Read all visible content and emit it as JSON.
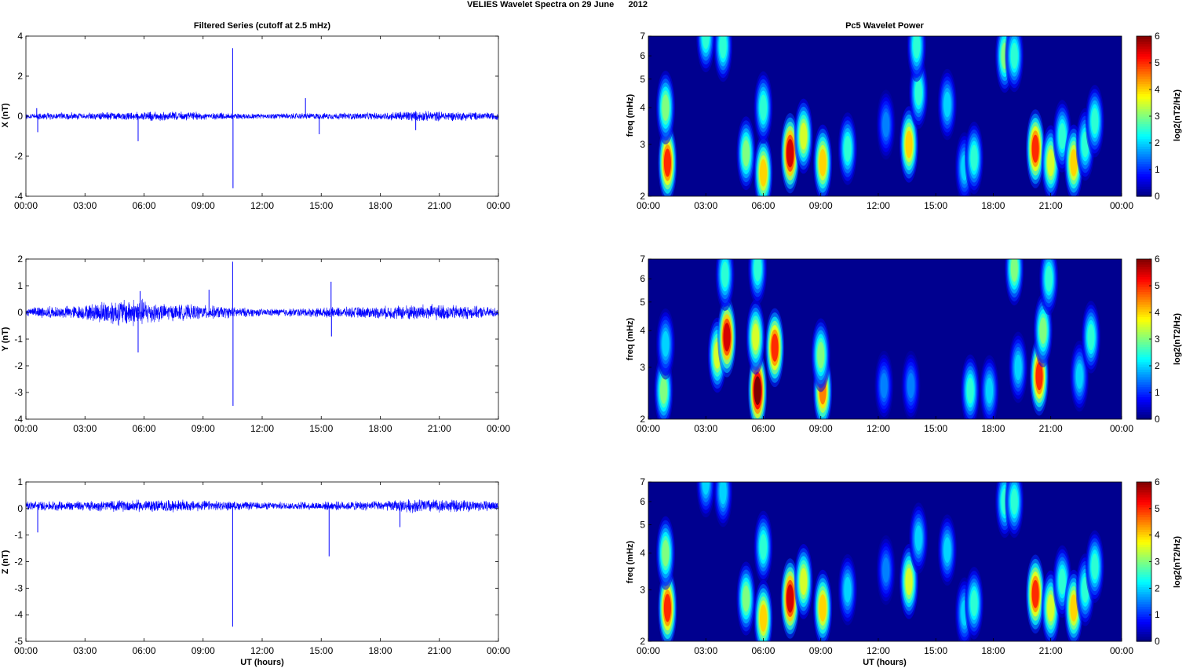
{
  "figure": {
    "title": "VELIES Wavelet Spectra on 29 June      2012",
    "left_title": "Filtered Series (cutoff at 2.5 mHz)",
    "right_title": "Pc5 Wavelet Power"
  },
  "colors": {
    "trace": "#0000ff",
    "background": "#00008f",
    "colormap": "jet"
  },
  "chart_data": [
    {
      "type": "line",
      "name": "x-series",
      "title": "Filtered Series (cutoff at 2.5 mHz)",
      "xlabel": "",
      "ylabel": "X (nT)",
      "xlim": [
        0,
        24
      ],
      "ylim": [
        -4,
        4
      ],
      "xticks": [
        "00:00",
        "03:00",
        "06:00",
        "09:00",
        "12:00",
        "15:00",
        "18:00",
        "21:00",
        "00:00"
      ],
      "yticks": [
        -4,
        -2,
        0,
        2,
        4
      ],
      "baseline": 0,
      "noise_envelope": [
        [
          0,
          0.2
        ],
        [
          3,
          0.2
        ],
        [
          5.5,
          0.25
        ],
        [
          7.5,
          0.25
        ],
        [
          12,
          0.15
        ],
        [
          18,
          0.2
        ],
        [
          19.5,
          0.3
        ],
        [
          22,
          0.25
        ],
        [
          24,
          0.2
        ]
      ],
      "spikes": [
        {
          "x": 0.55,
          "y": 0.4
        },
        {
          "x": 0.6,
          "y": -0.8
        },
        {
          "x": 5.7,
          "y": -1.25
        },
        {
          "x": 10.5,
          "y": 3.4
        },
        {
          "x": 10.52,
          "y": -3.6
        },
        {
          "x": 14.2,
          "y": 0.9
        },
        {
          "x": 14.9,
          "y": -0.9
        },
        {
          "x": 19.8,
          "y": -0.7
        }
      ]
    },
    {
      "type": "line",
      "name": "y-series",
      "title": "",
      "xlabel": "",
      "ylabel": "Y (nT)",
      "xlim": [
        0,
        24
      ],
      "ylim": [
        -4,
        2
      ],
      "xticks": [
        "00:00",
        "03:00",
        "06:00",
        "09:00",
        "12:00",
        "15:00",
        "18:00",
        "21:00",
        "00:00"
      ],
      "yticks": [
        -4,
        -3,
        -2,
        -1,
        0,
        1,
        2
      ],
      "baseline": 0,
      "noise_envelope": [
        [
          0,
          0.2
        ],
        [
          3,
          0.3
        ],
        [
          4,
          0.5
        ],
        [
          5.7,
          0.6
        ],
        [
          7,
          0.35
        ],
        [
          9,
          0.3
        ],
        [
          12,
          0.15
        ],
        [
          18,
          0.25
        ],
        [
          20,
          0.35
        ],
        [
          22,
          0.3
        ],
        [
          24,
          0.2
        ]
      ],
      "spikes": [
        {
          "x": 5.7,
          "y": -1.5
        },
        {
          "x": 5.8,
          "y": 0.8
        },
        {
          "x": 9.3,
          "y": 0.85
        },
        {
          "x": 10.5,
          "y": 1.9
        },
        {
          "x": 10.52,
          "y": -3.5
        },
        {
          "x": 15.5,
          "y": 1.15
        },
        {
          "x": 15.52,
          "y": -0.9
        }
      ]
    },
    {
      "type": "line",
      "name": "z-series",
      "title": "",
      "xlabel": "UT (hours)",
      "ylabel": "Z (nT)",
      "xlim": [
        0,
        24
      ],
      "ylim": [
        -5,
        1
      ],
      "xticks": [
        "00:00",
        "03:00",
        "06:00",
        "09:00",
        "12:00",
        "15:00",
        "18:00",
        "21:00",
        "00:00"
      ],
      "yticks": [
        -5,
        -4,
        -3,
        -2,
        -1,
        0,
        1
      ],
      "baseline": 0.1,
      "noise_envelope": [
        [
          0,
          0.2
        ],
        [
          3,
          0.2
        ],
        [
          5.5,
          0.25
        ],
        [
          7.5,
          0.25
        ],
        [
          12,
          0.15
        ],
        [
          18,
          0.2
        ],
        [
          20,
          0.3
        ],
        [
          22,
          0.25
        ],
        [
          24,
          0.2
        ]
      ],
      "spikes": [
        {
          "x": 0.6,
          "y": -0.9
        },
        {
          "x": 10.5,
          "y": -4.45
        },
        {
          "x": 15.4,
          "y": -1.8
        },
        {
          "x": 19.0,
          "y": -0.7
        }
      ]
    },
    {
      "type": "heatmap",
      "name": "x-wavelet",
      "title": "Pc5 Wavelet Power",
      "xlabel": "",
      "ylabel": "freq (mHz)",
      "colorbar_label": "log2(nT2/Hz)",
      "xlim": [
        0,
        24.7
      ],
      "ylim": [
        2,
        7
      ],
      "yscale": "log",
      "xticks": [
        {
          "v": 0,
          "t": "00:00"
        },
        {
          "v": 3,
          "t": "03:00"
        },
        {
          "v": 6,
          "t": "06:00"
        },
        {
          "v": 9,
          "t": "09:00"
        },
        {
          "v": 12,
          "t": "12:00"
        },
        {
          "v": 15,
          "t": "15:00"
        },
        {
          "v": 18,
          "t": "18:00"
        },
        {
          "v": 21,
          "t": "21:00"
        },
        {
          "v": 24.7,
          "t": "00:00"
        }
      ],
      "yticks": [
        2,
        3,
        4,
        5,
        6,
        7
      ],
      "clim": [
        0,
        6
      ],
      "cticks": [
        0,
        1,
        2,
        3,
        4,
        5,
        6
      ],
      "blobs": [
        {
          "t": 1.0,
          "f": 2.6,
          "v": 5.0
        },
        {
          "t": 0.9,
          "f": 4.0,
          "v": 3.0
        },
        {
          "t": 3.0,
          "f": 7.0,
          "v": 2.5
        },
        {
          "t": 3.9,
          "f": 6.5,
          "v": 2.5
        },
        {
          "t": 5.1,
          "f": 2.8,
          "v": 3.0
        },
        {
          "t": 6.0,
          "f": 2.4,
          "v": 4.0
        },
        {
          "t": 6.0,
          "f": 4.0,
          "v": 2.5
        },
        {
          "t": 7.4,
          "f": 2.8,
          "v": 5.5
        },
        {
          "t": 8.1,
          "f": 3.2,
          "v": 3.5
        },
        {
          "t": 9.1,
          "f": 2.6,
          "v": 4.0
        },
        {
          "t": 10.4,
          "f": 2.9,
          "v": 2.5
        },
        {
          "t": 12.4,
          "f": 3.5,
          "v": 1.5
        },
        {
          "t": 13.6,
          "f": 3.0,
          "v": 4.0
        },
        {
          "t": 14.1,
          "f": 4.5,
          "v": 2.5
        },
        {
          "t": 14.0,
          "f": 6.5,
          "v": 2.5
        },
        {
          "t": 15.6,
          "f": 4.1,
          "v": 2.0
        },
        {
          "t": 16.5,
          "f": 2.5,
          "v": 2.0
        },
        {
          "t": 17.0,
          "f": 2.7,
          "v": 2.5
        },
        {
          "t": 18.6,
          "f": 6.0,
          "v": 3.0
        },
        {
          "t": 19.1,
          "f": 6.0,
          "v": 2.5
        },
        {
          "t": 20.2,
          "f": 2.9,
          "v": 5.0
        },
        {
          "t": 21.0,
          "f": 2.6,
          "v": 3.5
        },
        {
          "t": 21.6,
          "f": 3.2,
          "v": 2.5
        },
        {
          "t": 22.2,
          "f": 2.6,
          "v": 4.0
        },
        {
          "t": 22.8,
          "f": 3.0,
          "v": 2.5
        },
        {
          "t": 23.3,
          "f": 3.6,
          "v": 2.5
        }
      ]
    },
    {
      "type": "heatmap",
      "name": "y-wavelet",
      "title": "",
      "xlabel": "",
      "ylabel": "freq (mHz)",
      "colorbar_label": "log2(nT2/Hz)",
      "xlim": [
        0,
        24.7
      ],
      "ylim": [
        2,
        7
      ],
      "yscale": "log",
      "xticks": [
        {
          "v": 0,
          "t": "00:00"
        },
        {
          "v": 3,
          "t": "03:00"
        },
        {
          "v": 6,
          "t": "06:00"
        },
        {
          "v": 9,
          "t": "09:00"
        },
        {
          "v": 12,
          "t": "12:00"
        },
        {
          "v": 15,
          "t": "15:00"
        },
        {
          "v": 18,
          "t": "18:00"
        },
        {
          "v": 21,
          "t": "21:00"
        },
        {
          "v": 24.7,
          "t": "00:00"
        }
      ],
      "yticks": [
        2,
        3,
        4,
        5,
        6,
        7
      ],
      "clim": [
        0,
        6
      ],
      "cticks": [
        0,
        1,
        2,
        3,
        4,
        5,
        6
      ],
      "blobs": [
        {
          "t": 0.8,
          "f": 2.5,
          "v": 3.0
        },
        {
          "t": 0.9,
          "f": 3.6,
          "v": 2.0
        },
        {
          "t": 3.6,
          "f": 3.3,
          "v": 3.5
        },
        {
          "t": 4.1,
          "f": 3.8,
          "v": 5.5
        },
        {
          "t": 4.0,
          "f": 6.2,
          "v": 2.5
        },
        {
          "t": 5.7,
          "f": 2.5,
          "v": 6.0
        },
        {
          "t": 5.6,
          "f": 3.8,
          "v": 3.5
        },
        {
          "t": 6.6,
          "f": 3.5,
          "v": 5.0
        },
        {
          "t": 5.7,
          "f": 6.5,
          "v": 2.5
        },
        {
          "t": 9.1,
          "f": 2.5,
          "v": 4.5
        },
        {
          "t": 9.0,
          "f": 3.3,
          "v": 3.0
        },
        {
          "t": 12.3,
          "f": 2.6,
          "v": 1.5
        },
        {
          "t": 13.7,
          "f": 2.6,
          "v": 1.5
        },
        {
          "t": 16.8,
          "f": 2.5,
          "v": 2.5
        },
        {
          "t": 17.8,
          "f": 2.5,
          "v": 2.0
        },
        {
          "t": 19.1,
          "f": 6.5,
          "v": 3.0
        },
        {
          "t": 19.3,
          "f": 3.0,
          "v": 2.0
        },
        {
          "t": 20.4,
          "f": 2.8,
          "v": 5.0
        },
        {
          "t": 20.6,
          "f": 4.0,
          "v": 3.0
        },
        {
          "t": 20.9,
          "f": 6.0,
          "v": 2.5
        },
        {
          "t": 22.5,
          "f": 2.8,
          "v": 2.0
        },
        {
          "t": 23.1,
          "f": 3.8,
          "v": 2.5
        }
      ]
    },
    {
      "type": "heatmap",
      "name": "z-wavelet",
      "title": "",
      "xlabel": "UT (hours)",
      "ylabel": "freq (mHz)",
      "colorbar_label": "log2(nT2/Hz)",
      "xlim": [
        0,
        24.7
      ],
      "ylim": [
        2,
        7
      ],
      "yscale": "log",
      "xticks": [
        {
          "v": 0,
          "t": "00:00"
        },
        {
          "v": 3,
          "t": "03:00"
        },
        {
          "v": 6,
          "t": "06:00"
        },
        {
          "v": 9,
          "t": "09:00"
        },
        {
          "v": 12,
          "t": "12:00"
        },
        {
          "v": 15,
          "t": "15:00"
        },
        {
          "v": 18,
          "t": "18:00"
        },
        {
          "v": 21,
          "t": "21:00"
        },
        {
          "v": 24.7,
          "t": "00:00"
        }
      ],
      "yticks": [
        2,
        3,
        4,
        5,
        6,
        7
      ],
      "clim": [
        0,
        6
      ],
      "cticks": [
        0,
        1,
        2,
        3,
        4,
        5,
        6
      ],
      "blobs": [
        {
          "t": 1.0,
          "f": 2.6,
          "v": 5.0
        },
        {
          "t": 0.9,
          "f": 4.0,
          "v": 3.0
        },
        {
          "t": 3.0,
          "f": 7.0,
          "v": 2.0
        },
        {
          "t": 3.9,
          "f": 6.5,
          "v": 2.0
        },
        {
          "t": 5.1,
          "f": 2.8,
          "v": 3.0
        },
        {
          "t": 6.0,
          "f": 2.4,
          "v": 4.0
        },
        {
          "t": 6.0,
          "f": 4.2,
          "v": 2.5
        },
        {
          "t": 7.4,
          "f": 2.8,
          "v": 5.5
        },
        {
          "t": 8.1,
          "f": 3.2,
          "v": 3.5
        },
        {
          "t": 9.1,
          "f": 2.6,
          "v": 4.0
        },
        {
          "t": 10.4,
          "f": 3.0,
          "v": 2.0
        },
        {
          "t": 12.4,
          "f": 3.5,
          "v": 1.5
        },
        {
          "t": 13.6,
          "f": 3.2,
          "v": 3.5
        },
        {
          "t": 14.1,
          "f": 4.5,
          "v": 2.0
        },
        {
          "t": 15.6,
          "f": 4.1,
          "v": 2.0
        },
        {
          "t": 16.5,
          "f": 2.5,
          "v": 2.0
        },
        {
          "t": 17.0,
          "f": 2.7,
          "v": 2.5
        },
        {
          "t": 18.6,
          "f": 6.0,
          "v": 2.5
        },
        {
          "t": 19.1,
          "f": 6.0,
          "v": 2.5
        },
        {
          "t": 20.2,
          "f": 2.9,
          "v": 5.0
        },
        {
          "t": 21.0,
          "f": 2.6,
          "v": 3.5
        },
        {
          "t": 21.6,
          "f": 3.2,
          "v": 2.5
        },
        {
          "t": 22.2,
          "f": 2.6,
          "v": 4.0
        },
        {
          "t": 22.8,
          "f": 3.0,
          "v": 2.5
        },
        {
          "t": 23.3,
          "f": 3.6,
          "v": 2.5
        }
      ]
    }
  ]
}
